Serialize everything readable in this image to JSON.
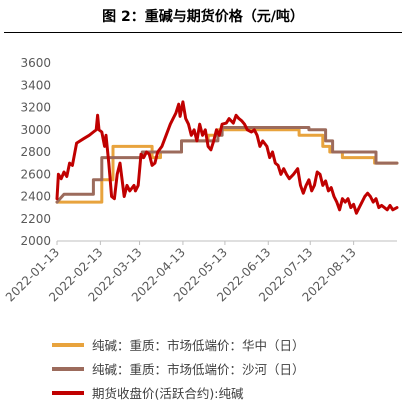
{
  "figure": {
    "title": "图 2：重碱与期货价格（元/吨）"
  },
  "colors": {
    "huazhong": "#E8A33D",
    "shahe": "#9C6B5C",
    "futures": "#C00000",
    "axis": "#bfbfbf"
  },
  "chart_data": {
    "type": "line",
    "title": "图 2：重碱与期货价格（元/吨）",
    "xlabel": "",
    "ylabel": "",
    "ylim": [
      2000,
      3600
    ],
    "yticks": [
      2000,
      2200,
      2400,
      2600,
      2800,
      3000,
      3200,
      3400,
      3600
    ],
    "xlim": [
      "2022-01-13",
      "2022-09-13"
    ],
    "xticks": [
      "2022-01-13",
      "2022-02-13",
      "2022-03-13",
      "2022-04-13",
      "2022-05-13",
      "2022-06-13",
      "2022-07-13",
      "2022-08-13"
    ],
    "grid": false,
    "legend_position": "bottom",
    "series": [
      {
        "name": "纯碱：重质：市场低端价：华中（日）",
        "color": "#E8A33D",
        "points": [
          [
            "2022-01-13",
            2350
          ],
          [
            "2022-02-14",
            2350
          ],
          [
            "2022-02-14",
            2550
          ],
          [
            "2022-02-22",
            2550
          ],
          [
            "2022-02-22",
            2850
          ],
          [
            "2022-03-22",
            2850
          ],
          [
            "2022-03-22",
            2750
          ],
          [
            "2022-03-28",
            2750
          ],
          [
            "2022-03-28",
            2800
          ],
          [
            "2022-04-12",
            2800
          ],
          [
            "2022-04-12",
            2900
          ],
          [
            "2022-05-01",
            2900
          ],
          [
            "2022-05-01",
            2950
          ],
          [
            "2022-05-08",
            2950
          ],
          [
            "2022-05-08",
            3000
          ],
          [
            "2022-07-05",
            3000
          ],
          [
            "2022-07-05",
            2950
          ],
          [
            "2022-07-22",
            2950
          ],
          [
            "2022-07-22",
            2850
          ],
          [
            "2022-07-27",
            2850
          ],
          [
            "2022-07-27",
            2800
          ],
          [
            "2022-08-05",
            2800
          ],
          [
            "2022-08-05",
            2750
          ],
          [
            "2022-08-28",
            2750
          ],
          [
            "2022-08-28",
            2700
          ],
          [
            "2022-09-13",
            2700
          ]
        ]
      },
      {
        "name": "纯碱：重质：市场低端价：沙河（日）",
        "color": "#9C6B5C",
        "points": [
          [
            "2022-01-13",
            2350
          ],
          [
            "2022-01-18",
            2420
          ],
          [
            "2022-02-01",
            2420
          ],
          [
            "2022-02-01",
            2420
          ],
          [
            "2022-02-08",
            2420
          ],
          [
            "2022-02-08",
            2550
          ],
          [
            "2022-02-14",
            2550
          ],
          [
            "2022-02-14",
            2750
          ],
          [
            "2022-03-15",
            2750
          ],
          [
            "2022-03-15",
            2800
          ],
          [
            "2022-04-12",
            2800
          ],
          [
            "2022-04-12",
            2900
          ],
          [
            "2022-05-08",
            2900
          ],
          [
            "2022-05-08",
            2950
          ],
          [
            "2022-05-11",
            2950
          ],
          [
            "2022-05-11",
            3020
          ],
          [
            "2022-07-12",
            3020
          ],
          [
            "2022-07-12",
            3000
          ],
          [
            "2022-07-24",
            3000
          ],
          [
            "2022-07-24",
            2900
          ],
          [
            "2022-07-29",
            2900
          ],
          [
            "2022-07-29",
            2800
          ],
          [
            "2022-08-29",
            2800
          ],
          [
            "2022-08-29",
            2700
          ],
          [
            "2022-09-13",
            2700
          ]
        ]
      },
      {
        "name": "期货收盘价(活跃合约):纯碱",
        "color": "#C00000",
        "points": [
          [
            "2022-01-13",
            2380
          ],
          [
            "2022-01-14",
            2600
          ],
          [
            "2022-01-16",
            2560
          ],
          [
            "2022-01-18",
            2620
          ],
          [
            "2022-01-20",
            2580
          ],
          [
            "2022-01-22",
            2700
          ],
          [
            "2022-01-24",
            2680
          ],
          [
            "2022-01-27",
            2880
          ],
          [
            "2022-02-01",
            2920
          ],
          [
            "2022-02-05",
            2950
          ],
          [
            "2022-02-08",
            2980
          ],
          [
            "2022-02-10",
            3000
          ],
          [
            "2022-02-11",
            3130
          ],
          [
            "2022-02-12",
            3000
          ],
          [
            "2022-02-14",
            2980
          ],
          [
            "2022-02-16",
            2850
          ],
          [
            "2022-02-17",
            2950
          ],
          [
            "2022-02-19",
            2700
          ],
          [
            "2022-02-21",
            2400
          ],
          [
            "2022-02-23",
            2380
          ],
          [
            "2022-02-25",
            2600
          ],
          [
            "2022-02-27",
            2700
          ],
          [
            "2022-02-28",
            2600
          ],
          [
            "2022-03-02",
            2400
          ],
          [
            "2022-03-04",
            2500
          ],
          [
            "2022-03-06",
            2450
          ],
          [
            "2022-03-09",
            2500
          ],
          [
            "2022-03-10",
            2450
          ],
          [
            "2022-03-12",
            2500
          ],
          [
            "2022-03-14",
            2780
          ],
          [
            "2022-03-16",
            2750
          ],
          [
            "2022-03-18",
            2800
          ],
          [
            "2022-03-20",
            2780
          ],
          [
            "2022-03-22",
            2680
          ],
          [
            "2022-03-24",
            2700
          ],
          [
            "2022-03-26",
            2800
          ],
          [
            "2022-03-29",
            2850
          ],
          [
            "2022-04-01",
            2950
          ],
          [
            "2022-04-04",
            3050
          ],
          [
            "2022-04-06",
            3100
          ],
          [
            "2022-04-08",
            3150
          ],
          [
            "2022-04-10",
            3230
          ],
          [
            "2022-04-11",
            3120
          ],
          [
            "2022-04-13",
            3250
          ],
          [
            "2022-04-15",
            3100
          ],
          [
            "2022-04-17",
            3050
          ],
          [
            "2022-04-19",
            2950
          ],
          [
            "2022-04-21",
            3000
          ],
          [
            "2022-04-23",
            2900
          ],
          [
            "2022-04-25",
            3050
          ],
          [
            "2022-04-27",
            2950
          ],
          [
            "2022-04-29",
            3000
          ],
          [
            "2022-05-01",
            2850
          ],
          [
            "2022-05-03",
            2820
          ],
          [
            "2022-05-05",
            2900
          ],
          [
            "2022-05-07",
            3000
          ],
          [
            "2022-05-09",
            2950
          ],
          [
            "2022-05-11",
            3050
          ],
          [
            "2022-05-14",
            3060
          ],
          [
            "2022-05-16",
            3100
          ],
          [
            "2022-05-19",
            3060
          ],
          [
            "2022-05-21",
            3130
          ],
          [
            "2022-05-23",
            3100
          ],
          [
            "2022-05-25",
            3080
          ],
          [
            "2022-05-27",
            3050
          ],
          [
            "2022-05-29",
            3000
          ],
          [
            "2022-06-01",
            2980
          ],
          [
            "2022-06-03",
            3000
          ],
          [
            "2022-06-05",
            2950
          ],
          [
            "2022-06-07",
            2850
          ],
          [
            "2022-06-09",
            2900
          ],
          [
            "2022-06-12",
            2850
          ],
          [
            "2022-06-14",
            2750
          ],
          [
            "2022-06-16",
            2800
          ],
          [
            "2022-06-18",
            2700
          ],
          [
            "2022-06-20",
            2680
          ],
          [
            "2022-06-22",
            2600
          ],
          [
            "2022-06-24",
            2650
          ],
          [
            "2022-06-26",
            2600
          ],
          [
            "2022-06-28",
            2560
          ],
          [
            "2022-07-01",
            2600
          ],
          [
            "2022-07-04",
            2650
          ],
          [
            "2022-07-06",
            2500
          ],
          [
            "2022-07-08",
            2430
          ],
          [
            "2022-07-10",
            2500
          ],
          [
            "2022-07-12",
            2550
          ],
          [
            "2022-07-14",
            2450
          ],
          [
            "2022-07-16",
            2500
          ],
          [
            "2022-07-18",
            2620
          ],
          [
            "2022-07-20",
            2600
          ],
          [
            "2022-07-22",
            2500
          ],
          [
            "2022-07-24",
            2540
          ],
          [
            "2022-07-26",
            2450
          ],
          [
            "2022-07-28",
            2480
          ],
          [
            "2022-07-30",
            2400
          ],
          [
            "2022-08-01",
            2350
          ],
          [
            "2022-08-03",
            2280
          ],
          [
            "2022-08-05",
            2380
          ],
          [
            "2022-08-07",
            2350
          ],
          [
            "2022-08-09",
            2380
          ],
          [
            "2022-08-11",
            2300
          ],
          [
            "2022-08-13",
            2330
          ],
          [
            "2022-08-15",
            2250
          ],
          [
            "2022-08-17",
            2300
          ],
          [
            "2022-08-19",
            2350
          ],
          [
            "2022-08-21",
            2400
          ],
          [
            "2022-08-23",
            2430
          ],
          [
            "2022-08-25",
            2400
          ],
          [
            "2022-08-27",
            2350
          ],
          [
            "2022-08-29",
            2380
          ],
          [
            "2022-08-31",
            2300
          ],
          [
            "2022-09-02",
            2320
          ],
          [
            "2022-09-04",
            2300
          ],
          [
            "2022-09-06",
            2280
          ],
          [
            "2022-09-08",
            2320
          ],
          [
            "2022-09-10",
            2280
          ],
          [
            "2022-09-13",
            2300
          ]
        ]
      }
    ]
  }
}
